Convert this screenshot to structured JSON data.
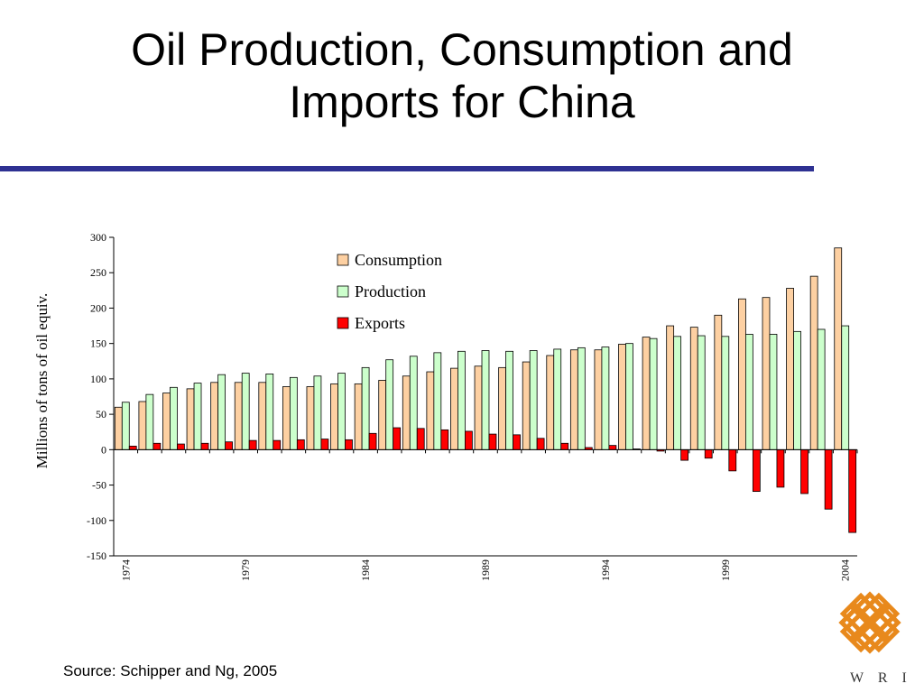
{
  "slide": {
    "title_line1": "Oil Production, Consumption and",
    "title_line2": "Imports for China",
    "source": "Source:  Schipper and Ng, 2005",
    "rule_color": "#2e3192"
  },
  "logo": {
    "text": "W R I",
    "color": "#e8891c",
    "icon": "wri-knot-logo"
  },
  "chart_data": {
    "type": "bar",
    "title": "",
    "xlabel": "",
    "ylabel": "Millions of tons of oil equiv.",
    "ylim": [
      -150,
      300
    ],
    "yticks": [
      300,
      250,
      200,
      150,
      100,
      50,
      0,
      -50,
      -100,
      -150
    ],
    "x_tick_labels": [
      "1974",
      "1979",
      "1984",
      "1989",
      "1994",
      "1999",
      "2004"
    ],
    "categories": [
      "1974",
      "1975",
      "1976",
      "1977",
      "1978",
      "1979",
      "1980",
      "1981",
      "1982",
      "1983",
      "1984",
      "1985",
      "1986",
      "1987",
      "1988",
      "1989",
      "1990",
      "1991",
      "1992",
      "1993",
      "1994",
      "1995",
      "1996",
      "1997",
      "1998",
      "1999",
      "2000",
      "2001",
      "2002",
      "2003",
      "2004"
    ],
    "legend_position": "top-center",
    "series": [
      {
        "name": "Consumption",
        "color": "#fdd0a2",
        "values": [
          60,
          68,
          80,
          86,
          95,
          95,
          95,
          89,
          89,
          93,
          93,
          98,
          104,
          110,
          115,
          118,
          116,
          124,
          133,
          141,
          141,
          149,
          159,
          175,
          173,
          190,
          213,
          215,
          228,
          245,
          285
        ]
      },
      {
        "name": "Production",
        "color": "#ccffcc",
        "values": [
          67,
          78,
          88,
          94,
          106,
          108,
          107,
          102,
          104,
          108,
          116,
          127,
          132,
          137,
          139,
          140,
          139,
          140,
          142,
          144,
          145,
          150,
          157,
          160,
          161,
          160,
          163,
          163,
          167,
          170,
          175
        ]
      },
      {
        "name": "Exports",
        "color": "#ff0000",
        "values": [
          5,
          9,
          8,
          9,
          11,
          13,
          13,
          14,
          15,
          14,
          23,
          31,
          30,
          28,
          26,
          22,
          21,
          16,
          9,
          3,
          6,
          1,
          -2,
          -15,
          -12,
          -30,
          -59,
          -53,
          -62,
          -84,
          -117
        ]
      }
    ]
  }
}
